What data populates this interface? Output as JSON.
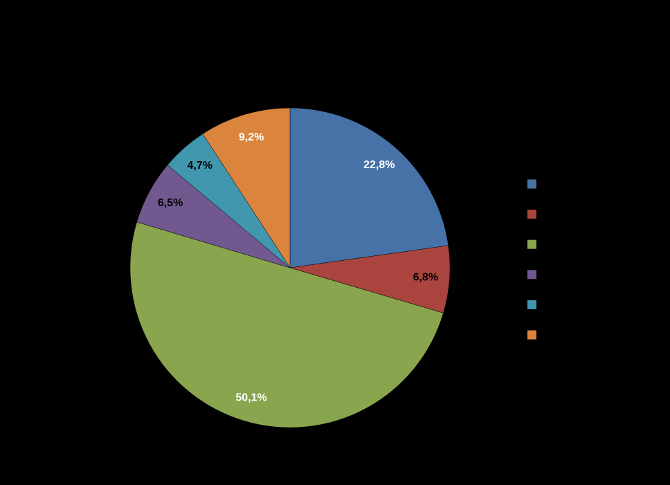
{
  "chart_data": {
    "type": "pie",
    "categories": [
      null,
      null,
      null,
      null,
      null,
      null
    ],
    "values": [
      22.8,
      6.8,
      50.1,
      6.5,
      4.7,
      9.2
    ],
    "value_labels": [
      "22,8%",
      "6,8%",
      "50,1%",
      "6,5%",
      "4,7%",
      "9,2%"
    ],
    "colors": [
      "#4672a8",
      "#a9443f",
      "#89a54e",
      "#71588f",
      "#4197ae",
      "#db843d"
    ],
    "label_colors": [
      "#ffffff",
      "#000000",
      "#ffffff",
      "#000000",
      "#000000",
      "#ffffff"
    ],
    "legend": "right"
  }
}
